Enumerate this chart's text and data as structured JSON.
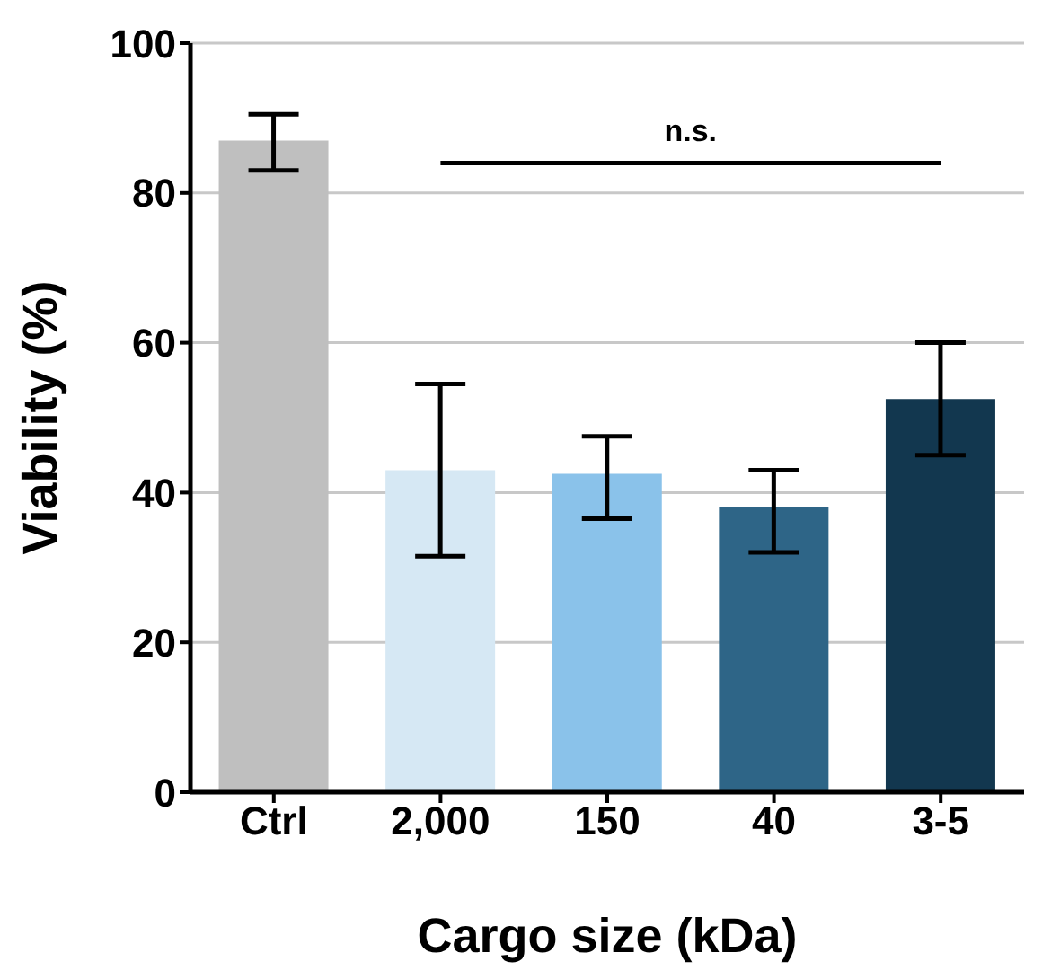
{
  "chart_data": {
    "type": "bar",
    "xlabel": "Cargo size (kDa)",
    "ylabel": "Viability (%)",
    "categories": [
      "Ctrl",
      "2,000",
      "150",
      "40",
      "3-5"
    ],
    "values": [
      87,
      43,
      42.5,
      38,
      52.5
    ],
    "colors": [
      "#bfbfbf",
      "#d6e8f4",
      "#8ac2ea",
      "#2e6587",
      "#12374f"
    ],
    "errors": [
      [
        83,
        90.5
      ],
      [
        31.5,
        54.5
      ],
      [
        36.5,
        47.5
      ],
      [
        32,
        43
      ],
      [
        45,
        60
      ]
    ],
    "ylim": [
      0,
      100
    ],
    "yticks": [
      0,
      20,
      40,
      60,
      80,
      100
    ],
    "grid": "y",
    "annotations": [
      "n.s."
    ]
  }
}
